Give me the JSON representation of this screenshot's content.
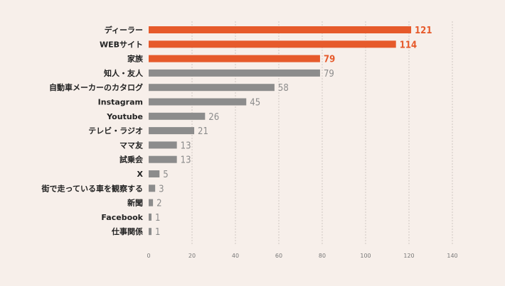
{
  "chart_data": {
    "type": "bar",
    "orientation": "horizontal",
    "title": "",
    "xlabel": "",
    "ylabel": "",
    "categories": [
      "ディーラー",
      "WEBサイト",
      "家族",
      "知人・友人",
      "自動車メーカーのカタログ",
      "Instagram",
      "Youtube",
      "テレビ・ラジオ",
      "ママ友",
      "試乗会",
      "X",
      "街で走っている車を観察する",
      "新聞",
      "Facebook",
      "仕事関係"
    ],
    "values": [
      121,
      114,
      79,
      79,
      58,
      45,
      26,
      21,
      13,
      13,
      5,
      3,
      2,
      1,
      1
    ],
    "highlighted": [
      true,
      true,
      true,
      false,
      false,
      false,
      false,
      false,
      false,
      false,
      false,
      false,
      false,
      false,
      false
    ],
    "xlim": [
      0,
      140
    ],
    "xticks": [
      0,
      20,
      40,
      60,
      80,
      100,
      120,
      140
    ],
    "grid": true,
    "colors": {
      "highlight": "#e65a2b",
      "default": "#8c8c8c",
      "highlight_label": "#e65a2b",
      "default_label": "#8c8c8c",
      "grid": "#cfc7c2",
      "background": "#f7efea"
    }
  }
}
